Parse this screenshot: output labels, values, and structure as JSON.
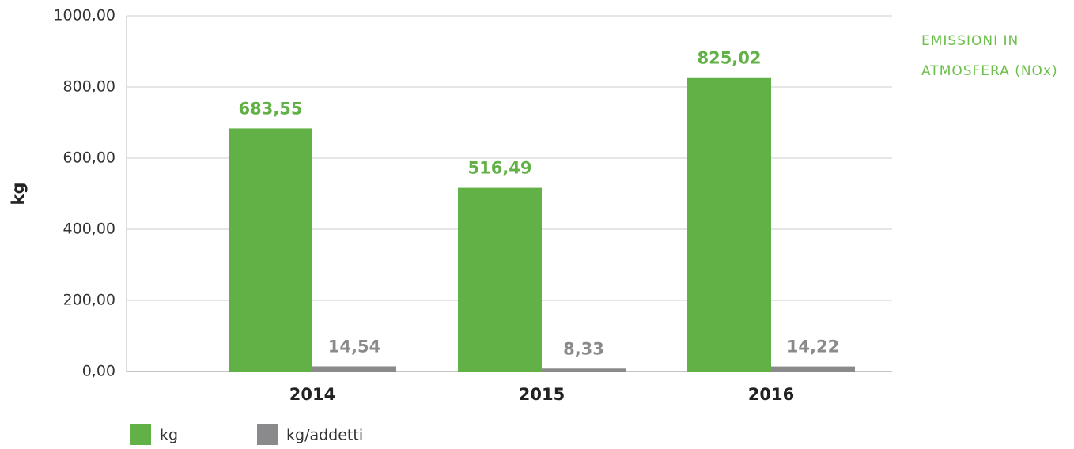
{
  "chart_data": {
    "type": "bar",
    "y_label": "kg",
    "annotation": [
      "EMISSIONI  IN",
      "ATMOSFERA (NOx)"
    ],
    "categories": [
      "2014",
      "2015",
      "2016"
    ],
    "series": [
      {
        "name": "kg",
        "color": "#62b146",
        "values": [
          683.55,
          516.49,
          825.02
        ],
        "value_labels": [
          "683,55",
          "516,49",
          "825,02"
        ]
      },
      {
        "name": "kg/addetti",
        "color": "#8a8a8c",
        "values": [
          14.54,
          8.33,
          14.22
        ],
        "value_labels": [
          "14,54",
          "8,33",
          "14,22"
        ]
      }
    ],
    "ylim": [
      0,
      1000
    ],
    "yticks": [
      {
        "value": 0,
        "label": "0,00"
      },
      {
        "value": 200,
        "label": "200,00"
      },
      {
        "value": 400,
        "label": "400,00"
      },
      {
        "value": 600,
        "label": "600,00"
      },
      {
        "value": 800,
        "label": "800,00"
      },
      {
        "value": 1000,
        "label": "1000,00"
      }
    ],
    "grid": true,
    "legend": "bottom"
  }
}
